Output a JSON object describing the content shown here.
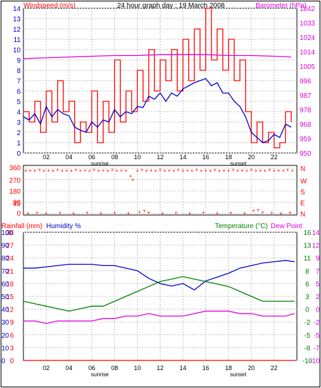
{
  "colors": {
    "red": "#ff0000",
    "blue": "#0000cc",
    "magenta": "#dd00dd",
    "green": "#008000",
    "grid": "#c0c0c0",
    "frame": "#000000"
  },
  "header": {
    "left_label": "Windspeed (m/s)",
    "title": "24 hour graph day : 19 March 2008",
    "right_label": "Barometer (hPa)"
  },
  "bottom_header": {
    "rainfall_label": "Rainfall (mm)",
    "humidity_label": "Humidity %",
    "temperature_label": "Temperature (°C)",
    "dewpoint_label": "Dew Point"
  },
  "sun_labels": {
    "sunrise": "sunrise",
    "sunset": "sunset"
  },
  "chart_data": [
    {
      "type": "line",
      "name": "wind-and-barometer",
      "x_ticks": [
        "02",
        "04",
        "06",
        "08",
        "10",
        "12",
        "14",
        "16",
        "18",
        "20",
        "22"
      ],
      "left_axis": {
        "label": "Windspeed (m/s)",
        "ticks": [
          "0",
          "1",
          "2",
          "3",
          "4",
          "5",
          "6",
          "7",
          "8",
          "9",
          "10",
          "11",
          "12",
          "13",
          "14"
        ],
        "range": [
          0,
          14
        ]
      },
      "right_axis": {
        "label": "Barometer (hPa)",
        "ticks": [
          "950",
          "959",
          "968",
          "978",
          "987",
          "996",
          "1005",
          "1014",
          "1024",
          "1033",
          "1042"
        ],
        "range": [
          950,
          1042
        ]
      },
      "series": [
        {
          "name": "Windspeed (m/s)",
          "x": [
            0,
            0.5,
            1,
            1.5,
            2,
            2.5,
            3,
            3.5,
            4,
            4.5,
            5,
            5.5,
            6,
            6.5,
            7,
            7.5,
            8,
            8.5,
            9,
            9.5,
            10,
            10.5,
            11,
            11.5,
            12,
            12.5,
            13,
            13.5,
            14,
            14.5,
            15,
            15.5,
            16,
            16.5,
            17,
            17.5,
            18,
            18.5,
            19,
            19.5,
            20,
            20.5,
            21,
            21.5,
            22,
            22.5,
            23,
            23.5
          ],
          "values": [
            4,
            3,
            5,
            2,
            6,
            3,
            7,
            4,
            5,
            1,
            3,
            2,
            6,
            1,
            5,
            2,
            9,
            3,
            6,
            4,
            8,
            5,
            10,
            6,
            9,
            7,
            10,
            6,
            11,
            7,
            12,
            8,
            14,
            9,
            12,
            8,
            11,
            7,
            9,
            4,
            1,
            3,
            1,
            2,
            0.5,
            1,
            4,
            3
          ]
        },
        {
          "name": "Gust",
          "x": [
            0,
            0.5,
            1,
            1.5,
            2,
            2.5,
            3,
            3.5,
            4,
            4.5,
            5,
            5.5,
            6,
            6.5,
            7,
            7.5,
            8,
            8.5,
            9,
            9.5,
            10,
            10.5,
            11,
            11.5,
            12,
            12.5,
            13,
            13.5,
            14,
            14.5,
            15,
            15.5,
            16,
            16.5,
            17,
            17.5,
            18,
            18.5,
            19,
            19.5,
            20,
            20.5,
            21,
            21.5,
            22,
            22.5,
            23,
            23.5
          ],
          "values": [
            3.5,
            3.2,
            3.8,
            2.8,
            4.5,
            3.5,
            4.2,
            3.8,
            3.6,
            2.5,
            2.2,
            2,
            3,
            2.5,
            3.2,
            3,
            4.2,
            3.5,
            4,
            3.8,
            4.5,
            4.4,
            5.5,
            5.2,
            5.8,
            5,
            5.8,
            5.5,
            6.2,
            6.5,
            6.8,
            7,
            7.2,
            6.5,
            6.8,
            5.8,
            5.8,
            5,
            4.5,
            3.5,
            2,
            1.5,
            1,
            1.2,
            1.8,
            1.5,
            2.8,
            2.5
          ]
        },
        {
          "name": "Barometer (hPa)",
          "x": [
            0,
            2,
            4,
            6,
            8,
            10,
            12,
            14,
            16,
            18,
            20,
            22,
            23.5
          ],
          "values": [
            1010,
            1010.5,
            1011,
            1011.5,
            1012,
            1012,
            1012.5,
            1012.5,
            1012.5,
            1012,
            1012,
            1011.5,
            1011
          ]
        }
      ]
    },
    {
      "type": "scatter",
      "name": "wind-direction",
      "left_axis": {
        "ticks": [
          "0",
          "45",
          "90",
          "180",
          "270",
          "360"
        ],
        "range": [
          0,
          360
        ]
      },
      "right_axis": {
        "ticks": [
          "N",
          "E",
          "S",
          "W",
          "N"
        ]
      },
      "markers": [
        {
          "x": 0.2,
          "y": 340
        },
        {
          "x": 0.6,
          "y": 345
        },
        {
          "x": 1.0,
          "y": 340
        },
        {
          "x": 1.4,
          "y": 350
        },
        {
          "x": 1.8,
          "y": 340
        },
        {
          "x": 2.2,
          "y": 345
        },
        {
          "x": 2.6,
          "y": 340
        },
        {
          "x": 3.0,
          "y": 350
        },
        {
          "x": 3.4,
          "y": 340
        },
        {
          "x": 3.8,
          "y": 345
        },
        {
          "x": 4.2,
          "y": 340
        },
        {
          "x": 4.6,
          "y": 350
        },
        {
          "x": 5.0,
          "y": 340
        },
        {
          "x": 5.4,
          "y": 345
        },
        {
          "x": 5.8,
          "y": 340
        },
        {
          "x": 6.2,
          "y": 350
        },
        {
          "x": 6.6,
          "y": 340
        },
        {
          "x": 7.0,
          "y": 345
        },
        {
          "x": 7.4,
          "y": 340
        },
        {
          "x": 7.8,
          "y": 350
        },
        {
          "x": 8.2,
          "y": 340
        },
        {
          "x": 8.6,
          "y": 345
        },
        {
          "x": 9.0,
          "y": 340
        },
        {
          "x": 9.4,
          "y": 300
        },
        {
          "x": 9.6,
          "y": 270
        },
        {
          "x": 10.0,
          "y": 340
        },
        {
          "x": 10.4,
          "y": 350
        },
        {
          "x": 10.8,
          "y": 340
        },
        {
          "x": 11.2,
          "y": 345
        },
        {
          "x": 11.6,
          "y": 340
        },
        {
          "x": 12.0,
          "y": 350
        },
        {
          "x": 12.4,
          "y": 340
        },
        {
          "x": 12.8,
          "y": 345
        },
        {
          "x": 13.2,
          "y": 340
        },
        {
          "x": 13.6,
          "y": 350
        },
        {
          "x": 14.0,
          "y": 340
        },
        {
          "x": 14.4,
          "y": 345
        },
        {
          "x": 14.8,
          "y": 340
        },
        {
          "x": 15.2,
          "y": 350
        },
        {
          "x": 15.6,
          "y": 340
        },
        {
          "x": 16.0,
          "y": 345
        },
        {
          "x": 16.4,
          "y": 340
        },
        {
          "x": 16.8,
          "y": 350
        },
        {
          "x": 17.2,
          "y": 340
        },
        {
          "x": 17.6,
          "y": 345
        },
        {
          "x": 18.0,
          "y": 340
        },
        {
          "x": 18.4,
          "y": 350
        },
        {
          "x": 18.8,
          "y": 340
        },
        {
          "x": 19.2,
          "y": 345
        },
        {
          "x": 19.6,
          "y": 340
        },
        {
          "x": 20.0,
          "y": 350
        },
        {
          "x": 20.4,
          "y": 340
        },
        {
          "x": 20.8,
          "y": 345
        },
        {
          "x": 21.2,
          "y": 340
        },
        {
          "x": 21.6,
          "y": 350
        },
        {
          "x": 22.0,
          "y": 340
        },
        {
          "x": 22.4,
          "y": 345
        },
        {
          "x": 22.8,
          "y": 340
        },
        {
          "x": 23.2,
          "y": 350
        },
        {
          "x": 23.6,
          "y": 340
        },
        {
          "x": 0.4,
          "y": 5
        },
        {
          "x": 1.2,
          "y": 10
        },
        {
          "x": 2.0,
          "y": 5
        },
        {
          "x": 3.2,
          "y": 8
        },
        {
          "x": 4.4,
          "y": 5
        },
        {
          "x": 5.6,
          "y": 10
        },
        {
          "x": 6.8,
          "y": 5
        },
        {
          "x": 8.0,
          "y": 8
        },
        {
          "x": 9.2,
          "y": 5
        },
        {
          "x": 10.2,
          "y": 15
        },
        {
          "x": 10.6,
          "y": 25
        },
        {
          "x": 11.0,
          "y": 10
        },
        {
          "x": 12.2,
          "y": 5
        },
        {
          "x": 13.4,
          "y": 8
        },
        {
          "x": 14.6,
          "y": 5
        },
        {
          "x": 15.8,
          "y": 10
        },
        {
          "x": 17.0,
          "y": 5
        },
        {
          "x": 18.2,
          "y": 8
        },
        {
          "x": 19.4,
          "y": 5
        },
        {
          "x": 20.2,
          "y": 25
        },
        {
          "x": 20.6,
          "y": 30
        },
        {
          "x": 21.0,
          "y": 15
        },
        {
          "x": 21.8,
          "y": 8
        },
        {
          "x": 22.6,
          "y": 5
        },
        {
          "x": 23.4,
          "y": 10
        }
      ]
    },
    {
      "type": "line",
      "name": "rain-humidity-temperature",
      "x_ticks": [
        "02",
        "04",
        "06",
        "08",
        "10",
        "12",
        "14",
        "16",
        "18",
        "20",
        "22"
      ],
      "rain_axis": {
        "label": "Rainfall (mm)",
        "ticks": [
          "0",
          "3",
          "6",
          "9",
          "12",
          "15",
          "18",
          "21",
          "24",
          "27",
          "30"
        ],
        "range": [
          0,
          30
        ]
      },
      "humidity_axis": {
        "label": "Humidity %",
        "ticks": [
          "0",
          "10",
          "20",
          "30",
          "40",
          "50",
          "60",
          "70",
          "80",
          "90",
          "100"
        ],
        "range": [
          0,
          100
        ]
      },
      "temp_axis": {
        "label": "Temperature (°C)",
        "ticks": [
          "-10",
          "-8",
          "-5",
          "-2",
          "0",
          "3",
          "6",
          "8",
          "11",
          "13",
          "16"
        ],
        "range": [
          -10,
          16
        ]
      },
      "dew_axis": {
        "label": "Dew Point",
        "ticks": [
          "-10",
          "-7",
          "-5",
          "-2",
          "0",
          "2",
          "5",
          "7",
          "9",
          "12",
          "14"
        ],
        "range": [
          -10,
          14
        ]
      },
      "series": [
        {
          "name": "Humidity %",
          "x": [
            0,
            1,
            2,
            3,
            4,
            5,
            6,
            7,
            8,
            9,
            10,
            11,
            12,
            13,
            14,
            15,
            16,
            17,
            18,
            19,
            20,
            21,
            22,
            23,
            23.8
          ],
          "values": [
            72,
            72,
            73,
            74,
            75,
            75,
            75,
            74,
            74,
            72,
            70,
            64,
            60,
            58,
            60,
            55,
            62,
            65,
            68,
            72,
            74,
            76,
            77,
            78,
            77
          ]
        },
        {
          "name": "Temperature (°C)",
          "x": [
            0,
            1,
            2,
            3,
            4,
            5,
            6,
            7,
            8,
            9,
            10,
            11,
            12,
            13,
            14,
            15,
            16,
            17,
            18,
            19,
            20,
            21,
            22,
            23,
            23.8
          ],
          "values": [
            2,
            1.5,
            1,
            0.5,
            0,
            0.5,
            1,
            1,
            2,
            3,
            4,
            5,
            6,
            6.5,
            7,
            6.5,
            6,
            5.5,
            5,
            4,
            3,
            2,
            2,
            2,
            2
          ]
        },
        {
          "name": "Dew Point",
          "x": [
            0,
            1,
            2,
            3,
            4,
            5,
            6,
            7,
            8,
            9,
            10,
            11,
            12,
            13,
            14,
            15,
            16,
            17,
            18,
            19,
            20,
            21,
            22,
            23,
            23.8
          ],
          "values": [
            -2,
            -2,
            -2.5,
            -2,
            -2,
            -2,
            -2,
            -1.5,
            -1.5,
            -1,
            -1,
            -0.5,
            -1,
            -1,
            -1,
            -0.5,
            0,
            0,
            0,
            -0.5,
            -0.5,
            -1,
            -1,
            -1,
            -0.5
          ]
        },
        {
          "name": "Rainfall (mm)",
          "x": [
            0,
            23.8
          ],
          "values": [
            0,
            0
          ]
        }
      ]
    }
  ]
}
